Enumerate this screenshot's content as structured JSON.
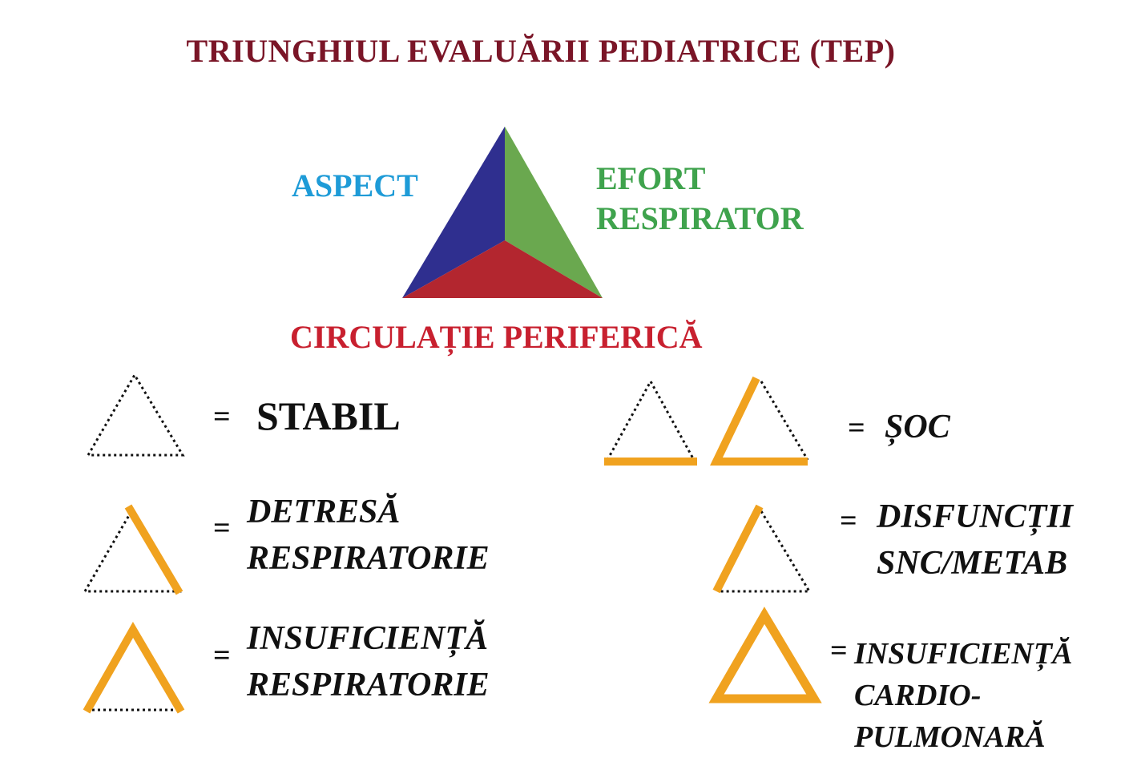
{
  "title": "TRIUNGHIUL EVALUĂRII PEDIATRICE (TEP)",
  "main_triangle": {
    "aspect": "ASPECT",
    "efort_line1": "EFORT",
    "efort_line2": "RESPIRATOR",
    "circulatie": "CIRCULAȚIE PERIFERICĂ",
    "colors": {
      "aspect": "#1e9bd7",
      "efort": "#3fa34d",
      "circulatie": "#c8202f",
      "left_face": "#2f2f8f",
      "right_face": "#6aa84f",
      "bottom_face": "#b3262f"
    }
  },
  "legend": {
    "equals": "=",
    "highlight_color": "#f0a21f",
    "stabil": "STABIL",
    "detresa_line1": "DETRESĂ",
    "detresa_line2": "RESPIRATORIE",
    "insuf_resp_line1": "INSUFICIENȚĂ",
    "insuf_resp_line2": "RESPIRATORIE",
    "soc": "ȘOC",
    "disfunctii_line1": "DISFUNCȚII",
    "disfunctii_line2": "SNC/METAB",
    "insuf_cp_line1": "INSUFICIENȚĂ",
    "insuf_cp_line2": "CARDIO-",
    "insuf_cp_line3": "PULMONARĂ"
  }
}
